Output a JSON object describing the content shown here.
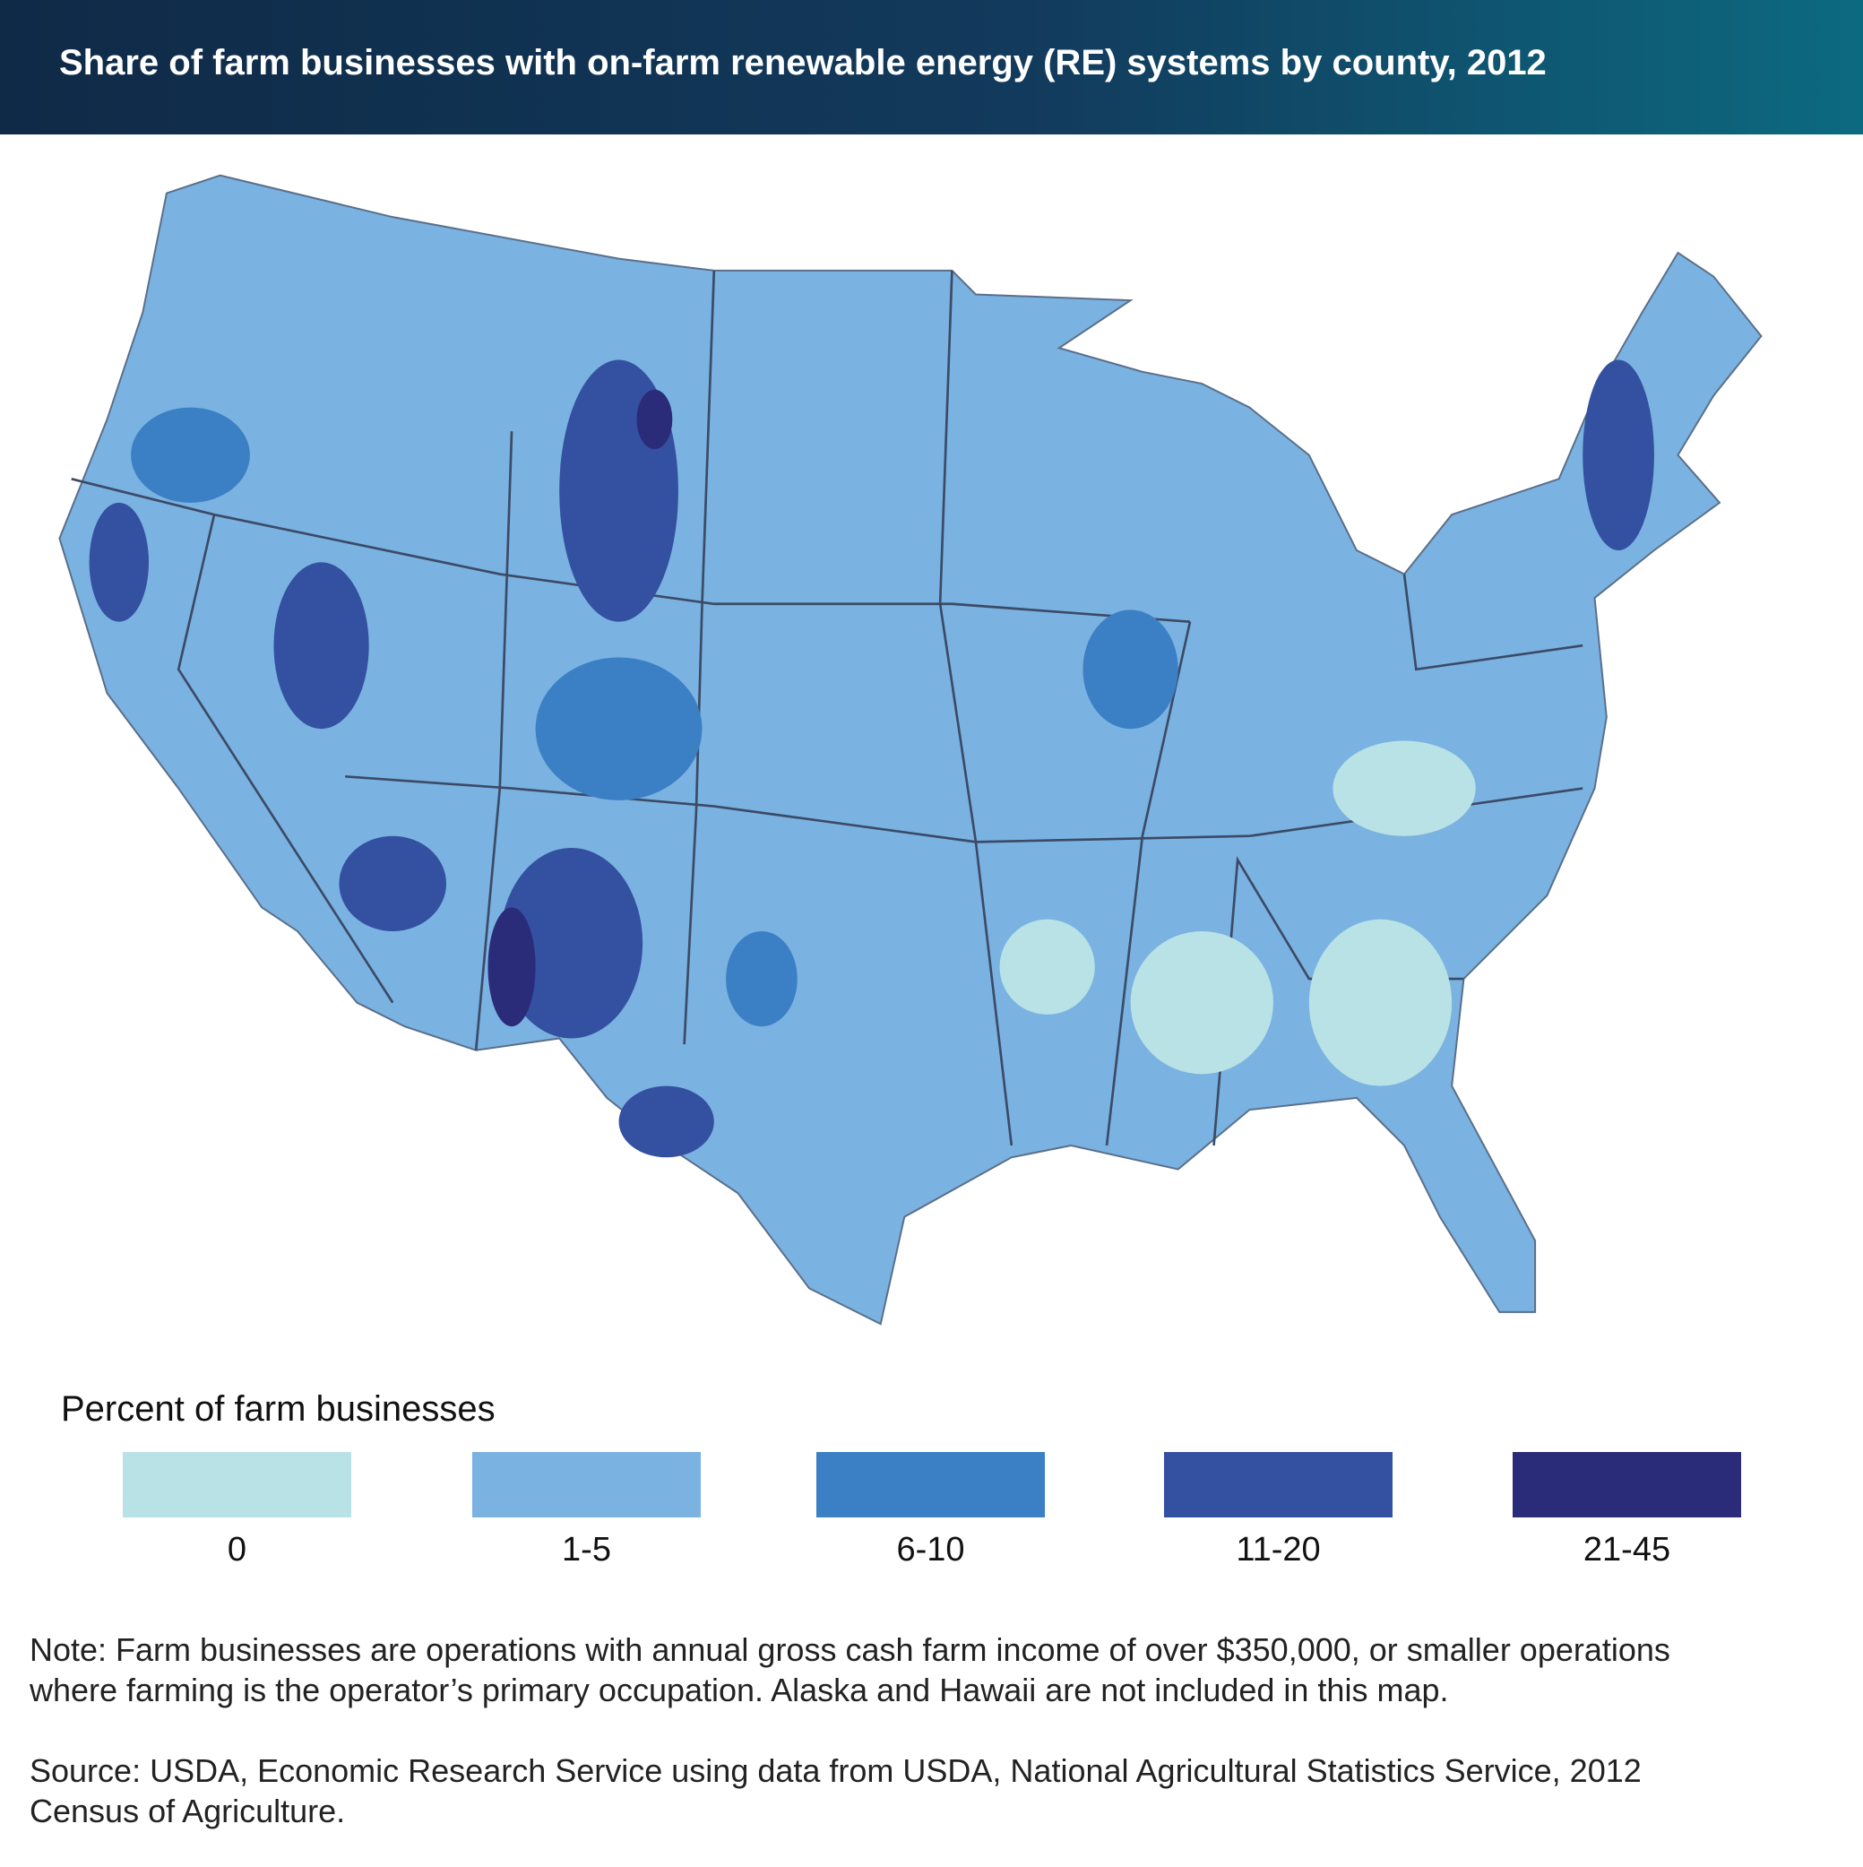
{
  "title": "Share of farm businesses with on-farm renewable energy (RE) systems by county, 2012",
  "legend": {
    "title": "Percent of farm businesses",
    "items": [
      {
        "label": "0",
        "color": "#b9e2e6"
      },
      {
        "label": "1-5",
        "color": "#7ab2e1"
      },
      {
        "label": "6-10",
        "color": "#3b7fc4"
      },
      {
        "label": "11-20",
        "color": "#3450a0"
      },
      {
        "label": "21-45",
        "color": "#2a2c7a"
      }
    ]
  },
  "note": "Note: Farm businesses are operations with annual gross cash farm income of over $350,000, or smaller operations where farming is the operator’s primary occupation. Alaska and Hawaii are not included in this map.",
  "source": "Source: USDA, Economic Research Service using data from USDA, National Agricultural Statistics Service, 2012 Census of Agriculture."
}
